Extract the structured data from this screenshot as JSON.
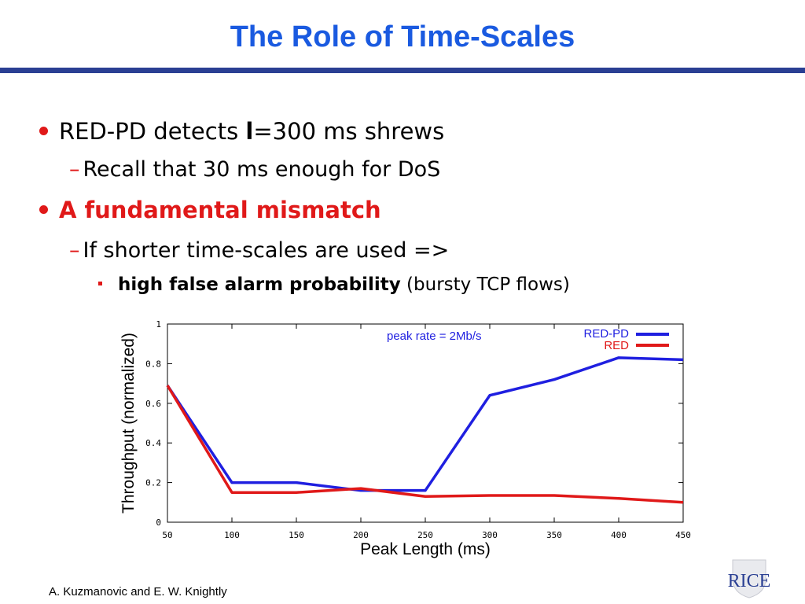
{
  "slide": {
    "title": "The Role of Time-Scales",
    "bullets": {
      "b1_pre": "RED-PD detects ",
      "b1_bold": "l",
      "b1_post": "=300 ms shrews",
      "b1_sub": "Recall that 30 ms enough for DoS",
      "b2": "A fundamental mismatch",
      "b2_sub": "If shorter time-scales are used =>",
      "b2_sub_sub_bold": "high false alarm probability",
      "b2_sub_sub_rest": " (bursty TCP flows)"
    },
    "dash_glyph": "–",
    "footer": "A. Kuzmanovic and E. W. Knightly",
    "logo_text": "RICE"
  },
  "colors": {
    "title": "#1a5ae0",
    "rule": "#2a3f93",
    "bullet": "#e01919",
    "red_pd": "#1f1fe0",
    "red": "#e01919"
  },
  "chart_data": {
    "type": "line",
    "xlabel": "Peak Length (ms)",
    "ylabel": "Throughput (normalized)",
    "annotation": "peak rate = 2Mb/s",
    "xlim": [
      50,
      450
    ],
    "ylim": [
      0,
      1
    ],
    "xticks": [
      "50",
      "100",
      "150",
      "200",
      "250",
      "300",
      "350",
      "400",
      "450"
    ],
    "yticks": [
      "0",
      "0.2",
      "0.4",
      "0.6",
      "0.8",
      "1"
    ],
    "legend_position": "top-right",
    "grid": false,
    "series": [
      {
        "name": "RED-PD",
        "color": "#1f1fe0",
        "x": [
          50,
          100,
          150,
          200,
          250,
          300,
          350,
          400,
          450
        ],
        "y": [
          0.69,
          0.2,
          0.2,
          0.16,
          0.16,
          0.64,
          0.72,
          0.83,
          0.82
        ]
      },
      {
        "name": "RED",
        "color": "#e01919",
        "x": [
          50,
          100,
          150,
          200,
          250,
          300,
          350,
          400,
          450
        ],
        "y": [
          0.69,
          0.15,
          0.15,
          0.17,
          0.13,
          0.135,
          0.135,
          0.12,
          0.1
        ]
      }
    ]
  }
}
